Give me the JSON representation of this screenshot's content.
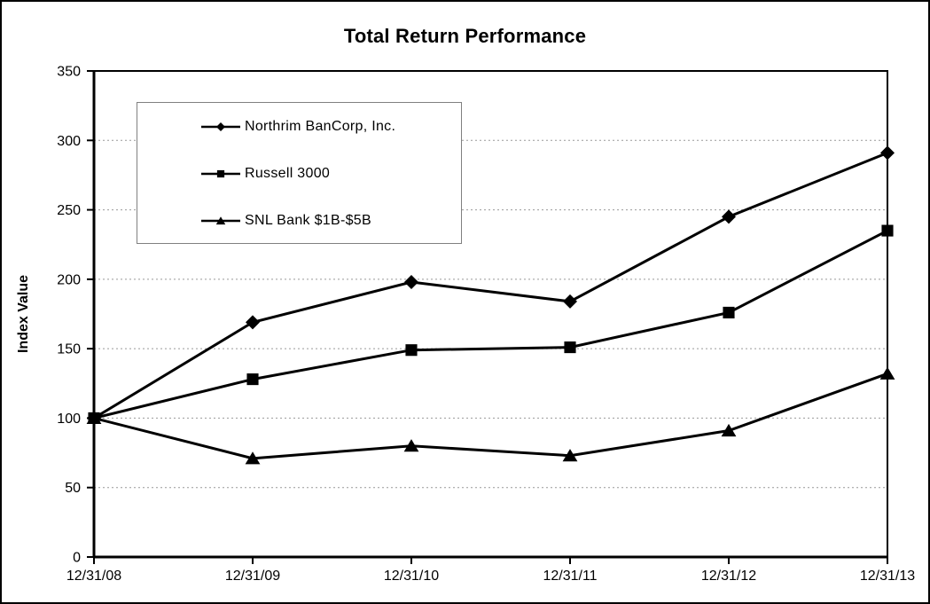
{
  "chart_data": {
    "type": "line",
    "title": "Total Return Performance",
    "xlabel": "",
    "ylabel": "Index Value",
    "categories": [
      "12/31/08",
      "12/31/09",
      "12/31/10",
      "12/31/11",
      "12/31/12",
      "12/31/13"
    ],
    "series": [
      {
        "name": "Northrim BanCorp, Inc.",
        "marker": "diamond",
        "color": "#000000",
        "values": [
          100,
          169,
          198,
          184,
          245,
          291
        ]
      },
      {
        "name": "Russell 3000",
        "marker": "square",
        "color": "#000000",
        "values": [
          100,
          128,
          149,
          151,
          176,
          235
        ]
      },
      {
        "name": "SNL Bank $1B-$5B",
        "marker": "triangle",
        "color": "#000000",
        "values": [
          100,
          71,
          80,
          73,
          91,
          132
        ]
      }
    ],
    "ylim": [
      0,
      350
    ],
    "ytick_step": 50,
    "ytick_labels": [
      "0",
      "50",
      "100",
      "150",
      "200",
      "250",
      "300",
      "350"
    ],
    "grid": true,
    "legend_position": "top-left-inside",
    "colors": {
      "line": "#000000",
      "text": "#000000",
      "grid": "#999999",
      "legend_border": "#808080",
      "background": "#ffffff"
    }
  }
}
